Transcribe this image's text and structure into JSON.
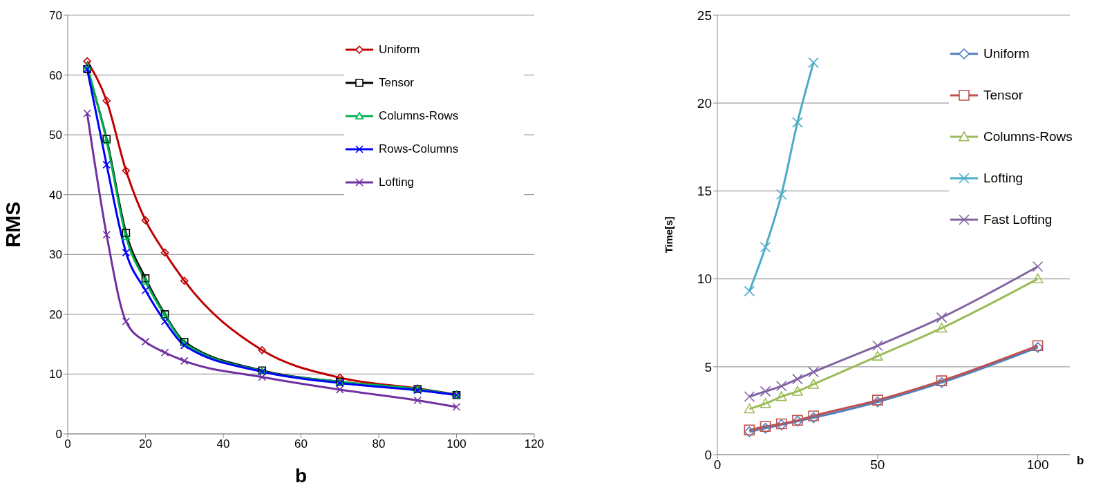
{
  "chart_data": [
    {
      "type": "line",
      "xlabel": "b",
      "ylabel": "RMS",
      "x": [
        5,
        10,
        15,
        20,
        25,
        30,
        50,
        70,
        90,
        100
      ],
      "xlim": [
        0,
        120
      ],
      "xticks": [
        0,
        20,
        40,
        60,
        80,
        100,
        120
      ],
      "ylim": [
        0,
        70
      ],
      "yticks": [
        0,
        10,
        20,
        30,
        40,
        50,
        60,
        70
      ],
      "grid": "y",
      "legend": "top right",
      "series": [
        {
          "name": "Uniform",
          "color": "#c00000",
          "marker": "diamond",
          "values": [
            62.3,
            55.7,
            44,
            35.7,
            30.3,
            25.6,
            14,
            9.4,
            7.6,
            6.6
          ]
        },
        {
          "name": "Tensor",
          "color": "#000000",
          "marker": "square",
          "values": [
            61,
            49.3,
            33.6,
            26,
            20,
            15.4,
            10.6,
            8.7,
            7.5,
            6.5
          ]
        },
        {
          "name": "Columns-Rows",
          "color": "#00b050",
          "marker": "triangle",
          "values": [
            61.5,
            49,
            33,
            25.5,
            19.8,
            15.2,
            10.5,
            8.7,
            7.5,
            6.5
          ]
        },
        {
          "name": "Rows-Columns",
          "color": "#0000ff",
          "marker": "cross",
          "values": [
            61,
            45,
            30.3,
            24,
            18.8,
            14.8,
            10.4,
            8.5,
            7.3,
            6.5
          ]
        },
        {
          "name": "Lofting",
          "color": "#7030a0",
          "marker": "cross",
          "values": [
            53.6,
            33.3,
            18.8,
            15.4,
            13.6,
            12.2,
            9.5,
            7.4,
            5.6,
            4.5
          ]
        }
      ]
    },
    {
      "type": "line",
      "xlabel": "b",
      "ylabel": "Time[s]",
      "x": [
        10,
        15,
        20,
        25,
        30,
        50,
        70,
        100
      ],
      "xlim": [
        0,
        110
      ],
      "xticks": [
        0,
        50,
        100
      ],
      "ylim": [
        0,
        25
      ],
      "yticks": [
        0,
        5,
        10,
        15,
        20,
        25
      ],
      "grid": "y",
      "legend": "top right",
      "series": [
        {
          "name": "Uniform",
          "color": "#4f81bd",
          "marker": "diamond",
          "values": [
            1.3,
            1.5,
            1.7,
            1.9,
            2.1,
            3.0,
            4.1,
            6.1
          ]
        },
        {
          "name": "Tensor",
          "color": "#c0504d",
          "marker": "square",
          "values": [
            1.4,
            1.6,
            1.75,
            1.95,
            2.2,
            3.1,
            4.2,
            6.2
          ]
        },
        {
          "name": "Columns-Rows",
          "color": "#9bbb59",
          "marker": "triangle",
          "values": [
            2.6,
            2.9,
            3.3,
            3.6,
            4.0,
            5.6,
            7.2,
            10.0
          ]
        },
        {
          "name": "Lofting",
          "color": "#4bacc6",
          "marker": "cross",
          "x": [
            10,
            15,
            20,
            25,
            30
          ],
          "values": [
            9.3,
            11.8,
            14.8,
            18.9,
            22.3
          ]
        },
        {
          "name": "Fast Lofting",
          "color": "#8064a2",
          "marker": "cross",
          "values": [
            3.3,
            3.6,
            3.9,
            4.3,
            4.7,
            6.2,
            7.8,
            10.7
          ]
        }
      ]
    }
  ]
}
